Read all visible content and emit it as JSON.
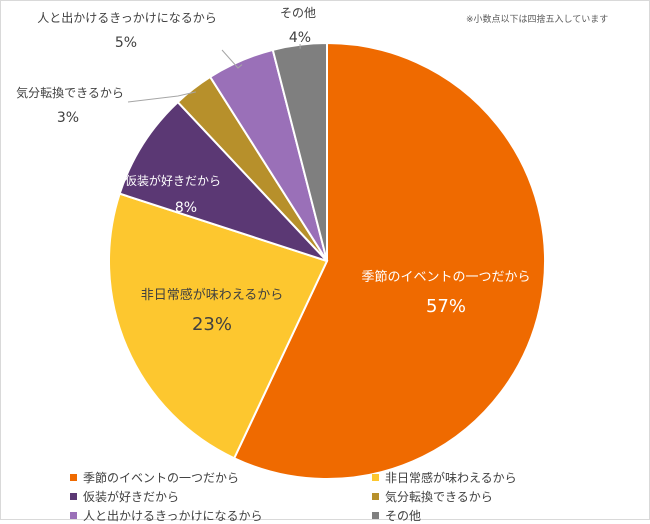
{
  "note": "※小数点以下は四捨五入しています",
  "chart_data": {
    "type": "pie",
    "title": "",
    "categories": [
      "季節のイベントの一つだから",
      "非日常感が味わえるから",
      "仮装が好きだから",
      "気分転換できるから",
      "人と出かけるきっかけになるから",
      "その他"
    ],
    "values": [
      57,
      23,
      8,
      3,
      5,
      4
    ],
    "value_labels": [
      "57%",
      "23%",
      "8%",
      "3%",
      "5%",
      "4%"
    ],
    "colors": [
      "#ef6a00",
      "#fdc72f",
      "#5b3874",
      "#b7902b",
      "#9a70b8",
      "#7f7f7f"
    ],
    "label_color": "#ffffff",
    "start": "12 o'clock, clockwise",
    "legend": "bottom"
  }
}
